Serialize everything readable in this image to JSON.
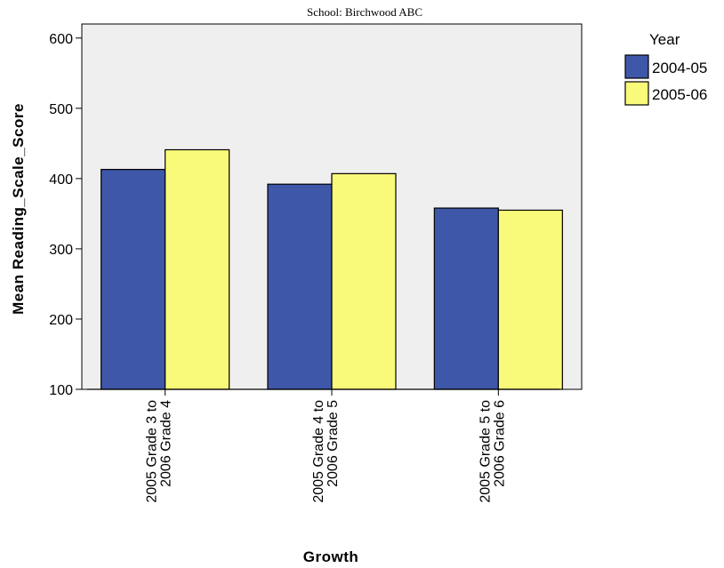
{
  "chart_data": {
    "type": "bar",
    "title": "School: Birchwood ABC",
    "xlabel": "Growth",
    "ylabel": "Mean Reading_Scale_Score",
    "ylim": [
      100,
      620
    ],
    "yticks": [
      100,
      200,
      300,
      400,
      500,
      600
    ],
    "categories": [
      [
        "2005 Grade 3 to",
        "2006 Grade 4"
      ],
      [
        "2005 Grade 4 to",
        "2006 Grade 5"
      ],
      [
        "2005 Grade 5 to",
        "2006 Grade 6"
      ]
    ],
    "series": [
      {
        "name": "2004-05",
        "color": "#3f57a8",
        "values": [
          413,
          392,
          358
        ]
      },
      {
        "name": "2005-06",
        "color": "#fafa7a",
        "values": [
          441,
          407,
          355
        ]
      }
    ],
    "legend": {
      "title": "Year",
      "placement": "right"
    },
    "plot_background": "#efefef",
    "grid": false
  }
}
